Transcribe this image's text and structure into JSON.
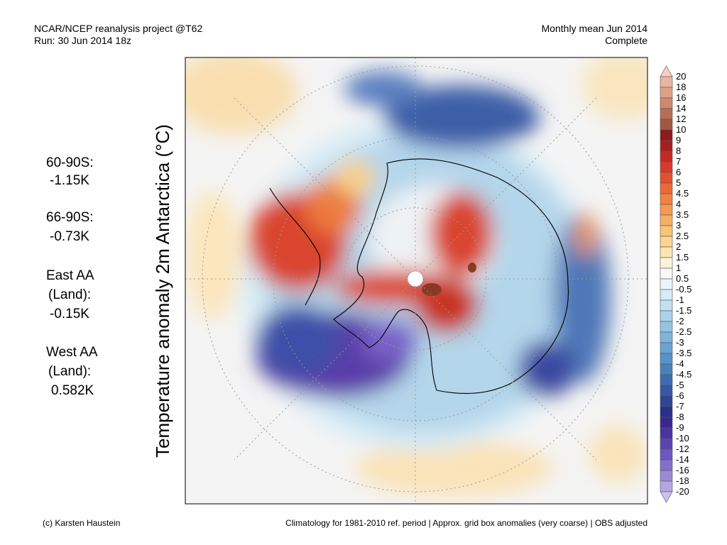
{
  "header": {
    "left_line1": "NCAR/NCEP reanalysis project @T62",
    "left_line2": "Run: 30 Jun 2014 18z",
    "right_line1": "Monthly mean Jun 2014",
    "right_line2": "Complete"
  },
  "axis_title": "Temperature anomaly 2m Antarctica (°C)",
  "stats": [
    "60-90S:",
    "-1.15K",
    "66-90S:",
    "-0.73K",
    "East AA",
    "(Land):",
    "-0.15K",
    "West AA",
    "(Land):",
    "0.582K"
  ],
  "colorbar_labels": [
    "20",
    "18",
    "16",
    "14",
    "12",
    "10",
    "9",
    "8",
    "7",
    "6",
    "5",
    "4.5",
    "4",
    "3.5",
    "3",
    "2.5",
    "2",
    "1.5",
    "1",
    "0.5",
    "-0.5",
    "-1",
    "-1.5",
    "-2",
    "-2.5",
    "-3",
    "-3.5",
    "-4",
    "-4.5",
    "-5",
    "-6",
    "-7",
    "-8",
    "-9",
    "-10",
    "-12",
    "-14",
    "-16",
    "-18",
    "-20"
  ],
  "footer": {
    "left": "(c) Karsten Haustein",
    "right": "Climatology for 1981-2010 ref. period | Approx. grid box anomalies (very coarse) | OBS adjusted"
  }
}
